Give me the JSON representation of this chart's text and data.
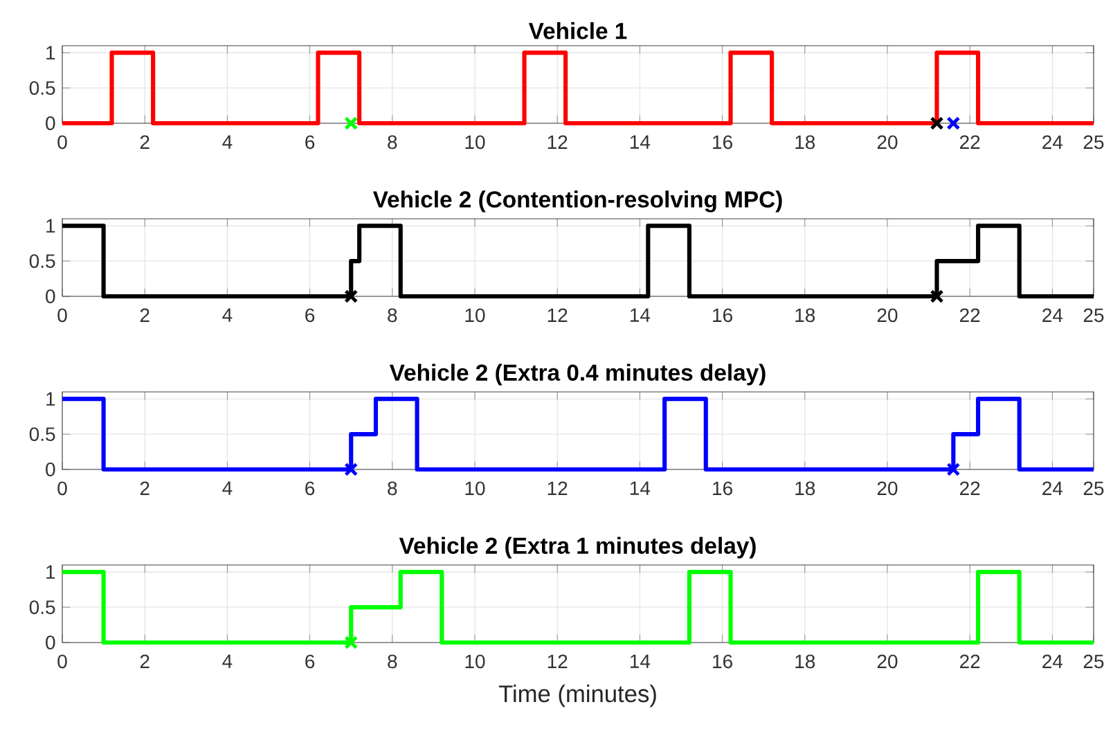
{
  "chart_data": [
    {
      "type": "step",
      "title": "Vehicle 1",
      "xlim": [
        0,
        25
      ],
      "xticks": [
        0,
        2,
        4,
        6,
        8,
        10,
        12,
        14,
        16,
        18,
        20,
        22,
        24,
        25
      ],
      "ylim": [
        0,
        1.1
      ],
      "yticks": [
        0,
        0.5,
        1
      ],
      "grid": true,
      "series": [
        {
          "color": "#ff0000",
          "x": [
            0,
            1.2,
            2.2,
            6.2,
            7.2,
            11.2,
            12.2,
            16.2,
            17.2,
            21.2,
            22.2,
            25
          ],
          "values": [
            0,
            1,
            0,
            1,
            0,
            1,
            0,
            1,
            0,
            1,
            0,
            0
          ]
        },
        {
          "type": "scatter",
          "marker": "cross",
          "color": "#000000",
          "x": [
            21.2
          ],
          "values": [
            0
          ]
        },
        {
          "type": "scatter",
          "marker": "cross",
          "color": "#0000ff",
          "x": [
            21.6
          ],
          "values": [
            0
          ]
        },
        {
          "type": "scatter",
          "marker": "cross",
          "color": "#00ff00",
          "x": [
            7.0
          ],
          "values": [
            0
          ]
        }
      ]
    },
    {
      "type": "step",
      "title": "Vehicle 2 (Contention-resolving MPC)",
      "xlim": [
        0,
        25
      ],
      "xticks": [
        0,
        2,
        4,
        6,
        8,
        10,
        12,
        14,
        16,
        18,
        20,
        22,
        24,
        25
      ],
      "ylim": [
        0,
        1.1
      ],
      "yticks": [
        0,
        0.5,
        1
      ],
      "grid": true,
      "series": [
        {
          "color": "#000000",
          "x": [
            0,
            1.0,
            7.0,
            7.2,
            8.2,
            14.2,
            15.2,
            21.2,
            22.2,
            23.2,
            25
          ],
          "values": [
            1,
            0,
            0.5,
            1,
            0,
            1,
            0,
            0.5,
            1,
            0,
            0
          ]
        },
        {
          "type": "scatter",
          "marker": "cross",
          "color": "#000000",
          "x": [
            7.0,
            21.2
          ],
          "values": [
            0,
            0
          ]
        }
      ]
    },
    {
      "type": "step",
      "title": "Vehicle 2 (Extra 0.4 minutes delay)",
      "xlim": [
        0,
        25
      ],
      "xticks": [
        0,
        2,
        4,
        6,
        8,
        10,
        12,
        14,
        16,
        18,
        20,
        22,
        24,
        25
      ],
      "ylim": [
        0,
        1.1
      ],
      "yticks": [
        0,
        0.5,
        1
      ],
      "grid": true,
      "series": [
        {
          "color": "#0000ff",
          "x": [
            0,
            1.0,
            7.0,
            7.6,
            8.6,
            14.6,
            15.6,
            21.6,
            22.2,
            23.2,
            25
          ],
          "values": [
            1,
            0,
            0.5,
            1,
            0,
            1,
            0,
            0.5,
            1,
            0,
            0
          ]
        },
        {
          "type": "scatter",
          "marker": "cross",
          "color": "#0000ff",
          "x": [
            7.0,
            21.6
          ],
          "values": [
            0,
            0
          ]
        }
      ]
    },
    {
      "type": "step",
      "title": "Vehicle 2 (Extra 1 minutes delay)",
      "xlabel": "Time (minutes)",
      "xlim": [
        0,
        25
      ],
      "xticks": [
        0,
        2,
        4,
        6,
        8,
        10,
        12,
        14,
        16,
        18,
        20,
        22,
        24,
        25
      ],
      "ylim": [
        0,
        1.1
      ],
      "yticks": [
        0,
        0.5,
        1
      ],
      "grid": true,
      "series": [
        {
          "color": "#00ff00",
          "x": [
            0,
            1.0,
            7.0,
            8.2,
            9.2,
            15.2,
            16.2,
            22.2,
            23.2,
            25
          ],
          "values": [
            1,
            0,
            0.5,
            1,
            0,
            1,
            0,
            1,
            0,
            0
          ]
        },
        {
          "type": "scatter",
          "marker": "cross",
          "color": "#00ff00",
          "x": [
            7.0
          ],
          "values": [
            0
          ]
        }
      ]
    }
  ]
}
